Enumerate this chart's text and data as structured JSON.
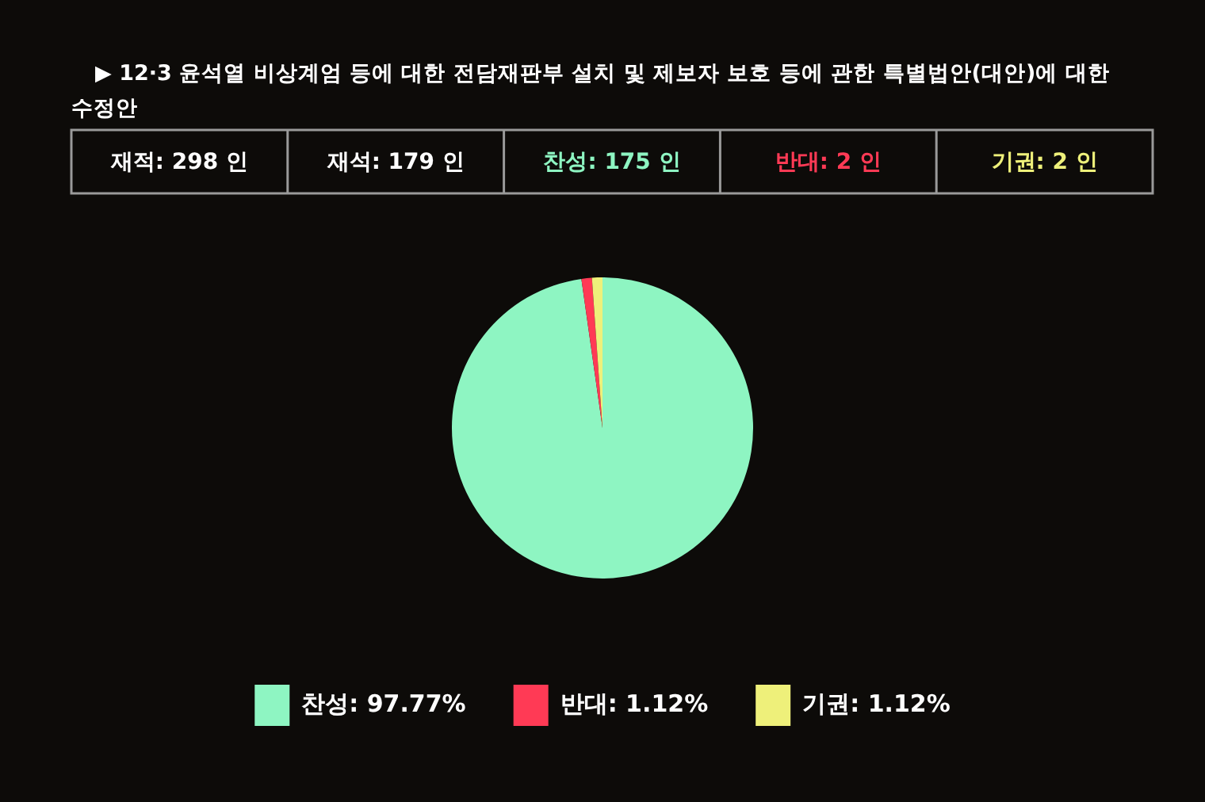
{
  "chart_data": {
    "type": "pie",
    "title": "▶ 12·3 윤석열 비상계엄 등에 대한 전담재판부 설치 및 제보자 보호 등에 관한 특별법안(대안)에 대한 수정안",
    "categories": [
      "찬성",
      "반대",
      "기권"
    ],
    "values": [
      97.77,
      1.12,
      1.12
    ],
    "value_labels": [
      "97.77%",
      "1.12%",
      "1.12%"
    ],
    "colors": [
      "#8ef5c2",
      "#ff3a55",
      "#eef07a"
    ],
    "legend": "bottom",
    "annotations": [
      "재적: 298 인",
      "재석: 179 인",
      "찬성: 175 인",
      "반대: 2 인",
      "기권: 2 인"
    ]
  }
}
